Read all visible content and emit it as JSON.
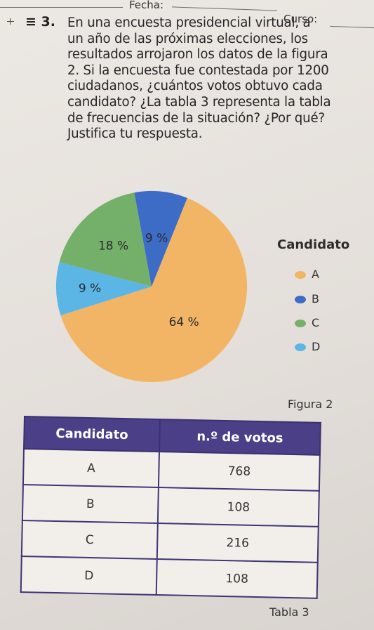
{
  "header": {
    "fecha_label": "Fecha:",
    "curso_label": "Curso:"
  },
  "question": {
    "number": "3.",
    "lines": [
      "En una encuesta presidencial virtual, a",
      "un año de las próximas elecciones, los",
      "resultados arrojaron los datos de la figura",
      "2. Si la encuesta fue contestada por 1200",
      "ciudadanos, ¿cuántos votos obtuvo cada",
      "candidato? ¿La tabla 3 representa la tabla",
      "de frecuencias de la situación? ¿Por qué?",
      "Justifica tu respuesta."
    ]
  },
  "chart_data": {
    "type": "pie",
    "title": "",
    "legend_title": "Candidato",
    "legend_position": "right",
    "categories": [
      "A",
      "B",
      "C",
      "D"
    ],
    "values": [
      64,
      9,
      18,
      9
    ],
    "labels": [
      "64 %",
      "9 %",
      "18 %",
      "9 %"
    ],
    "colors": [
      "#f2b565",
      "#3d6cc6",
      "#74b06a",
      "#5bb6e6"
    ],
    "caption": "Figura 2"
  },
  "table": {
    "headers": [
      "Candidato",
      "n.º de votos"
    ],
    "rows": [
      [
        "A",
        "768"
      ],
      [
        "B",
        "108"
      ],
      [
        "C",
        "216"
      ],
      [
        "D",
        "108"
      ]
    ],
    "caption": "Tabla 3",
    "header_color": "#4b3f88"
  }
}
